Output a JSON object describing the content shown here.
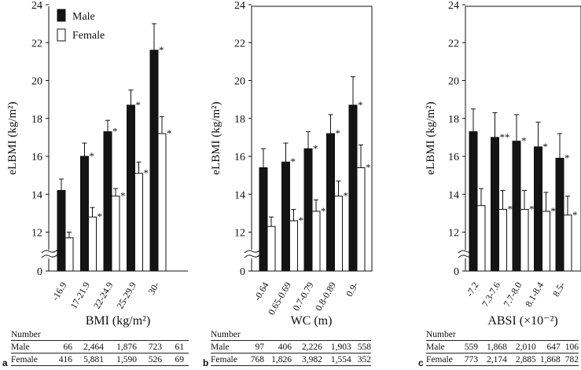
{
  "chart_data": [
    {
      "type": "bar",
      "panel": "a",
      "title": "",
      "xlabel": "BMI (kg/m²)",
      "ylabel": "eLBMI (kg/m²)",
      "ylim": [
        0,
        24
      ],
      "axis_break": "between 0 and 12",
      "yticks": [
        "0",
        "12",
        "14",
        "16",
        "18",
        "20",
        "22",
        "24"
      ],
      "categories": [
        "-16.9",
        "17-21.9",
        "22-24.9",
        "25-29.9",
        "30-"
      ],
      "legend": {
        "position": "top-left",
        "entries": [
          "Male",
          "Female"
        ]
      },
      "series": [
        {
          "name": "Male",
          "values": [
            14.2,
            16.0,
            17.3,
            18.7,
            21.6
          ],
          "errors": [
            0.6,
            0.7,
            0.6,
            0.8,
            1.4
          ],
          "labels": [
            "",
            "*",
            "*",
            "*",
            "*"
          ]
        },
        {
          "name": "Female",
          "values": [
            11.7,
            12.8,
            13.9,
            15.1,
            17.2
          ],
          "errors": [
            0.3,
            0.5,
            0.4,
            0.6,
            0.9
          ],
          "labels": [
            "",
            "*",
            "*",
            "*",
            "*"
          ]
        }
      ],
      "table": {
        "title": "Number",
        "rows": [
          {
            "label": "Male",
            "values": [
              "66",
              "2,464",
              "1,876",
              "723",
              "61"
            ]
          },
          {
            "label": "Female",
            "values": [
              "416",
              "5,881",
              "1,590",
              "526",
              "69"
            ]
          }
        ]
      }
    },
    {
      "type": "bar",
      "panel": "b",
      "title": "",
      "xlabel": "WC (m)",
      "ylabel": "eLBMI (kg/m²)",
      "ylim": [
        0,
        24
      ],
      "axis_break": "between 0 and 12",
      "yticks": [
        "0",
        "12",
        "14",
        "16",
        "18",
        "20",
        "22",
        "24"
      ],
      "categories": [
        "-0.64",
        "0.65-0.69",
        "0.7-0.79",
        "0.8-0.89",
        "0.9-"
      ],
      "series": [
        {
          "name": "Male",
          "values": [
            15.4,
            15.7,
            16.4,
            17.2,
            18.7
          ],
          "errors": [
            1.0,
            1.0,
            0.9,
            1.0,
            1.5
          ],
          "labels": [
            "",
            "*",
            "*",
            "*",
            "*"
          ]
        },
        {
          "name": "Female",
          "values": [
            12.3,
            12.6,
            13.1,
            13.9,
            15.4
          ],
          "errors": [
            0.5,
            0.6,
            0.6,
            0.8,
            1.2
          ],
          "labels": [
            "",
            "*",
            "*",
            "*",
            "*"
          ]
        }
      ],
      "table": {
        "title": "Number",
        "rows": [
          {
            "label": "Male",
            "values": [
              "97",
              "406",
              "2,226",
              "1,903",
              "558"
            ]
          },
          {
            "label": "Female",
            "values": [
              "768",
              "1,826",
              "3,982",
              "1,554",
              "352"
            ]
          }
        ]
      }
    },
    {
      "type": "bar",
      "panel": "c",
      "title": "",
      "xlabel": "ABSI (×10⁻²)",
      "ylabel": "eLBMI (kg/m²)",
      "ylim": [
        0,
        24
      ],
      "axis_break": "between 0 and 12",
      "yticks": [
        "0",
        "12",
        "14",
        "16",
        "18",
        "20",
        "22",
        "24"
      ],
      "categories": [
        "-7.2",
        "7.3-7.6",
        "7.7-8.0",
        "8.1-8.4",
        "8.5-"
      ],
      "series": [
        {
          "name": "Male",
          "values": [
            17.3,
            17.0,
            16.8,
            16.5,
            15.9
          ],
          "errors": [
            1.2,
            1.3,
            1.4,
            1.3,
            1.3
          ],
          "labels": [
            "",
            "**",
            "*",
            "*",
            "*"
          ]
        },
        {
          "name": "Female",
          "values": [
            13.4,
            13.2,
            13.2,
            13.1,
            12.9
          ],
          "errors": [
            0.9,
            1.0,
            1.0,
            1.0,
            1.0
          ],
          "labels": [
            "",
            "**",
            "*",
            "*",
            "*"
          ]
        }
      ],
      "table": {
        "title": "Number",
        "rows": [
          {
            "label": "Male",
            "values": [
              "559",
              "1,868",
              "2,010",
              "647",
              "106"
            ]
          },
          {
            "label": "Female",
            "values": [
              "773",
              "2,174",
              "2,885",
              "1,868",
              "782"
            ]
          }
        ]
      }
    }
  ],
  "colors": {
    "male": "#141414",
    "female": "#ffffff",
    "axis": "#111111"
  }
}
